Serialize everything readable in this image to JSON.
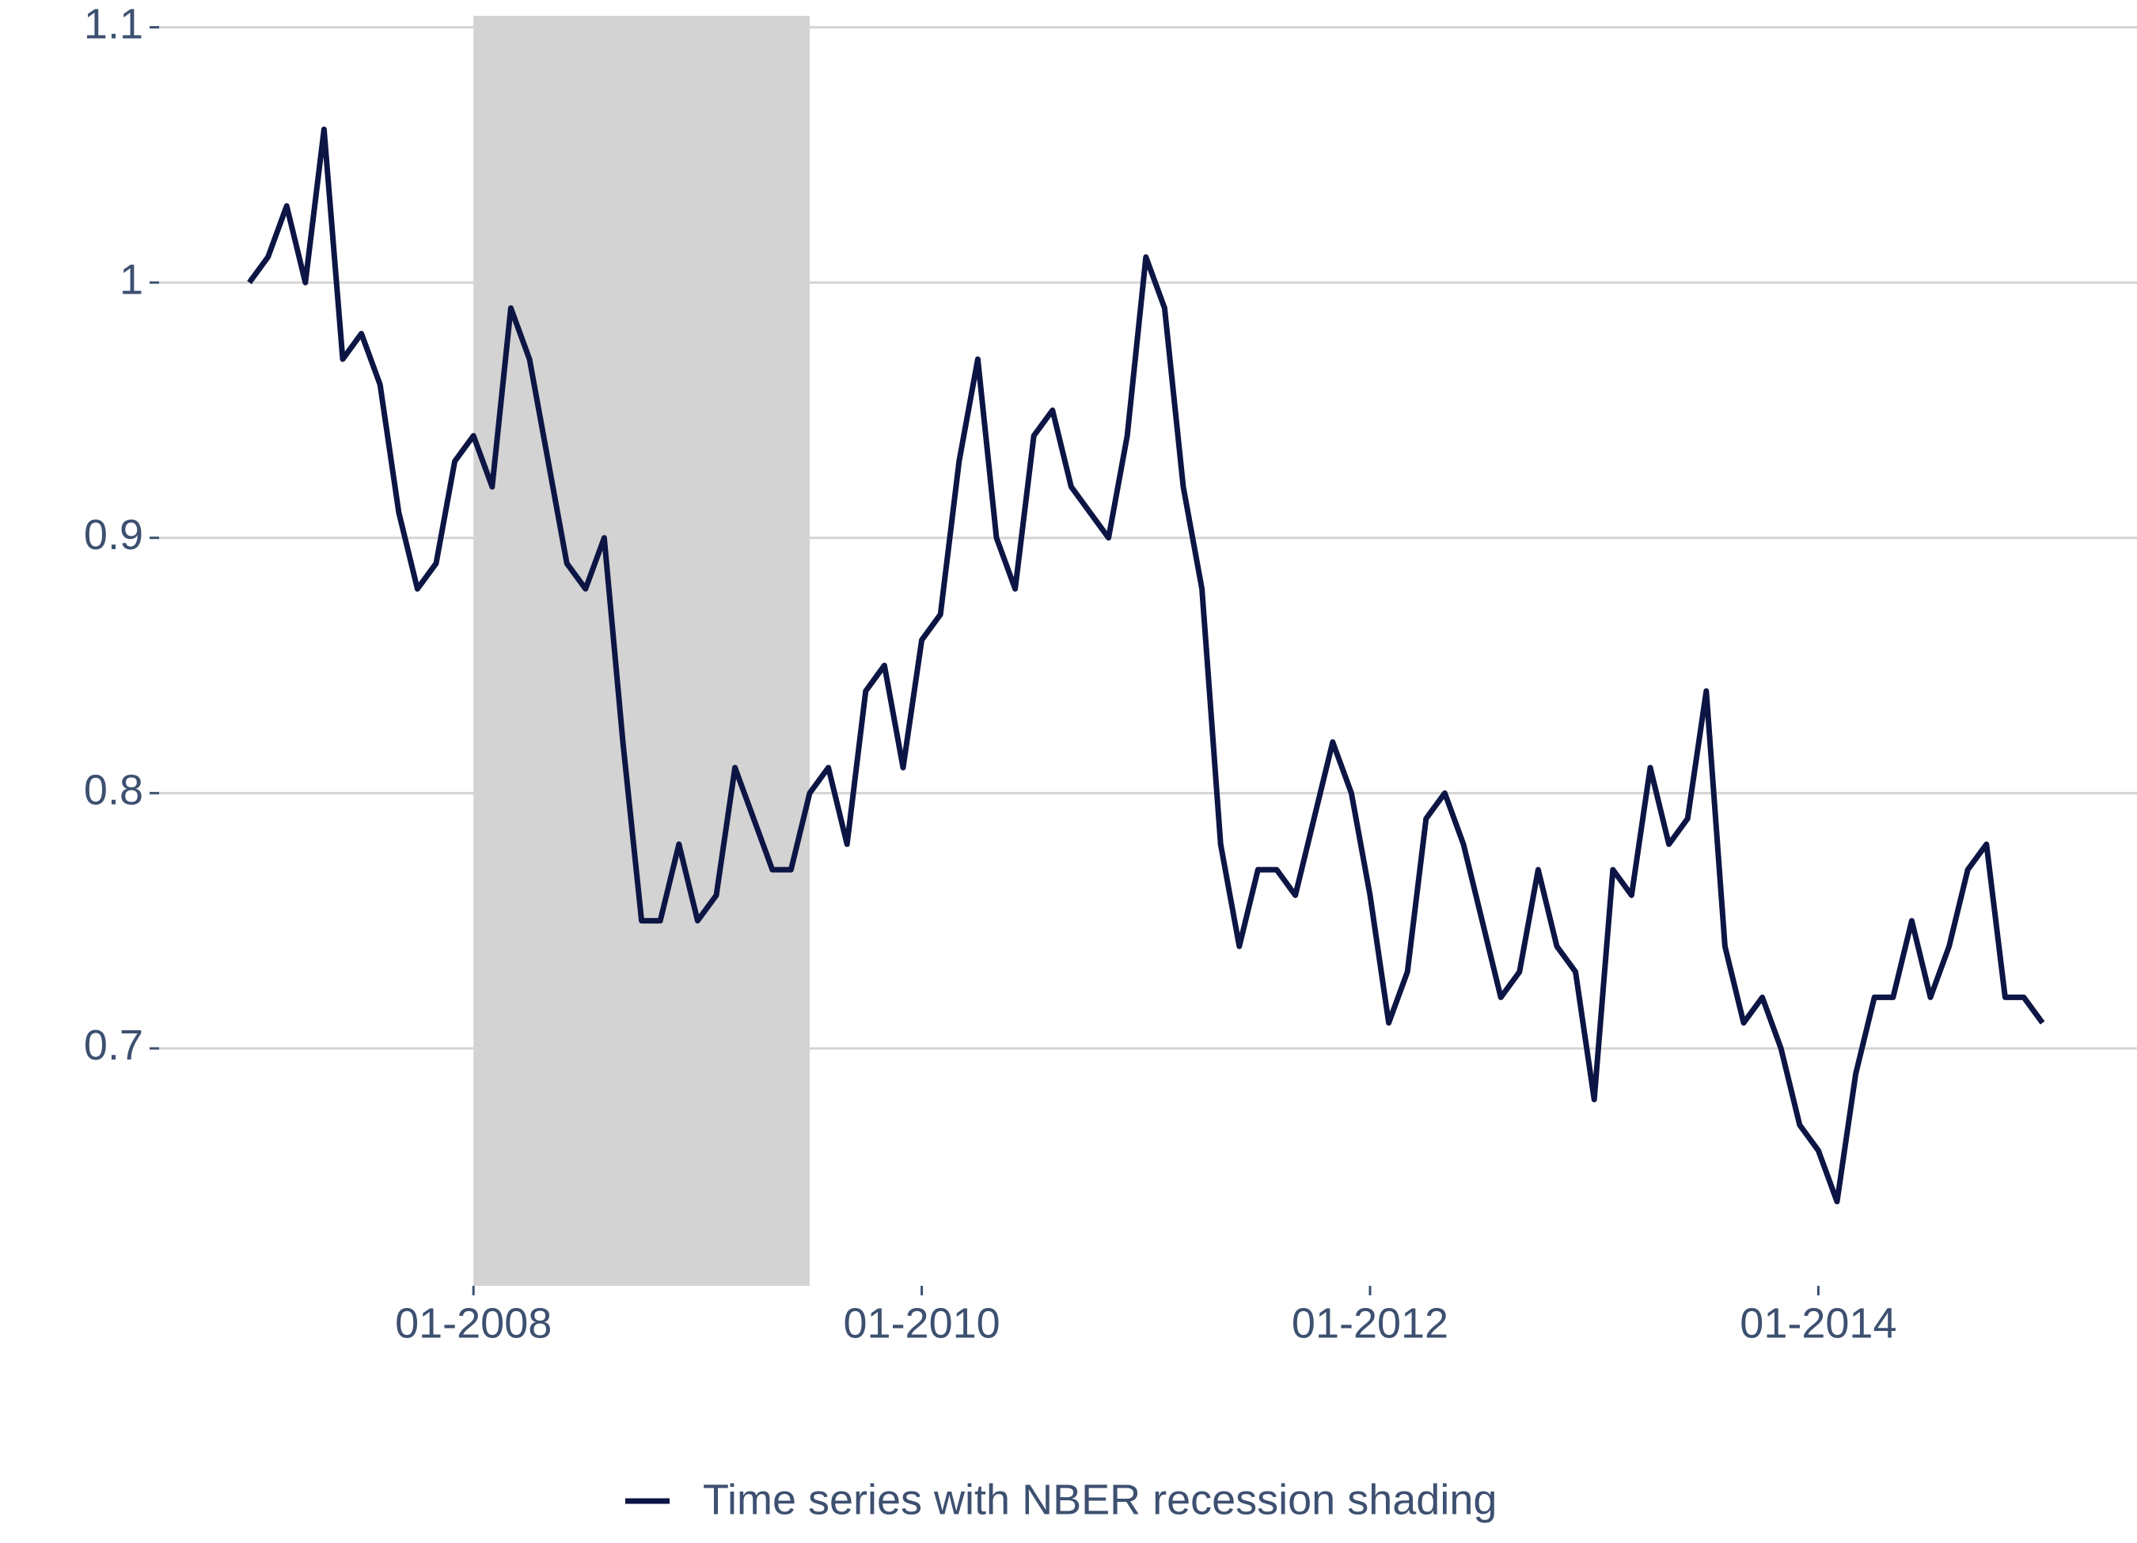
{
  "chart_data": {
    "type": "line",
    "x": [
      "01-2007",
      "02-2007",
      "03-2007",
      "04-2007",
      "05-2007",
      "06-2007",
      "07-2007",
      "08-2007",
      "09-2007",
      "10-2007",
      "11-2007",
      "12-2007",
      "01-2008",
      "02-2008",
      "03-2008",
      "04-2008",
      "05-2008",
      "06-2008",
      "07-2008",
      "08-2008",
      "09-2008",
      "10-2008",
      "11-2008",
      "12-2008",
      "01-2009",
      "02-2009",
      "03-2009",
      "04-2009",
      "05-2009",
      "06-2009",
      "07-2009",
      "08-2009",
      "09-2009",
      "10-2009",
      "11-2009",
      "12-2009",
      "01-2010",
      "02-2010",
      "03-2010",
      "04-2010",
      "05-2010",
      "06-2010",
      "07-2010",
      "08-2010",
      "09-2010",
      "10-2010",
      "11-2010",
      "12-2010",
      "01-2011",
      "02-2011",
      "03-2011",
      "04-2011",
      "05-2011",
      "06-2011",
      "07-2011",
      "08-2011",
      "09-2011",
      "10-2011",
      "11-2011",
      "12-2011",
      "01-2012",
      "02-2012",
      "03-2012",
      "04-2012",
      "05-2012",
      "06-2012",
      "07-2012",
      "08-2012",
      "09-2012",
      "10-2012",
      "11-2012",
      "12-2012",
      "01-2013",
      "02-2013",
      "03-2013",
      "04-2013",
      "05-2013",
      "06-2013",
      "07-2013",
      "08-2013",
      "09-2013",
      "10-2013",
      "11-2013",
      "12-2013",
      "01-2014",
      "02-2014",
      "03-2014",
      "04-2014",
      "05-2014",
      "06-2014",
      "07-2014",
      "08-2014",
      "09-2014",
      "10-2014",
      "11-2014",
      "12-2014",
      "01-2015"
    ],
    "series": [
      {
        "name": "Time series with NBER recession shading",
        "color": "#0d1544",
        "values": [
          1.0,
          1.01,
          1.03,
          1.0,
          1.06,
          0.97,
          0.98,
          0.96,
          0.91,
          0.88,
          0.89,
          0.93,
          0.94,
          0.92,
          0.99,
          0.97,
          0.93,
          0.89,
          0.88,
          0.9,
          0.82,
          0.75,
          0.75,
          0.78,
          0.75,
          0.76,
          0.81,
          0.79,
          0.77,
          0.77,
          0.8,
          0.81,
          0.78,
          0.84,
          0.85,
          0.81,
          0.86,
          0.87,
          0.93,
          0.97,
          0.9,
          0.88,
          0.94,
          0.95,
          0.92,
          0.91,
          0.9,
          0.94,
          1.01,
          0.99,
          0.92,
          0.88,
          0.78,
          0.74,
          0.77,
          0.77,
          0.76,
          0.79,
          0.82,
          0.8,
          0.76,
          0.71,
          0.73,
          0.79,
          0.8,
          0.78,
          0.75,
          0.72,
          0.73,
          0.77,
          0.74,
          0.73,
          0.68,
          0.77,
          0.76,
          0.81,
          0.78,
          0.79,
          0.84,
          0.74,
          0.71,
          0.72,
          0.7,
          0.67,
          0.66,
          0.64,
          0.69,
          0.72,
          0.72,
          0.75,
          0.72,
          0.74,
          0.77,
          0.78,
          0.72,
          0.72,
          0.71
        ]
      }
    ],
    "shading": [
      {
        "start": "01-2008",
        "end": "07-2009",
        "color": "#d3d3d3"
      }
    ],
    "xticks": [
      "01-2008",
      "01-2010",
      "01-2012",
      "01-2014"
    ],
    "ylim": [
      0.607,
      1.102
    ],
    "yticks": [
      0.7,
      0.8,
      0.9,
      1.0,
      1.1
    ],
    "grid": true,
    "legend": "bottom"
  }
}
